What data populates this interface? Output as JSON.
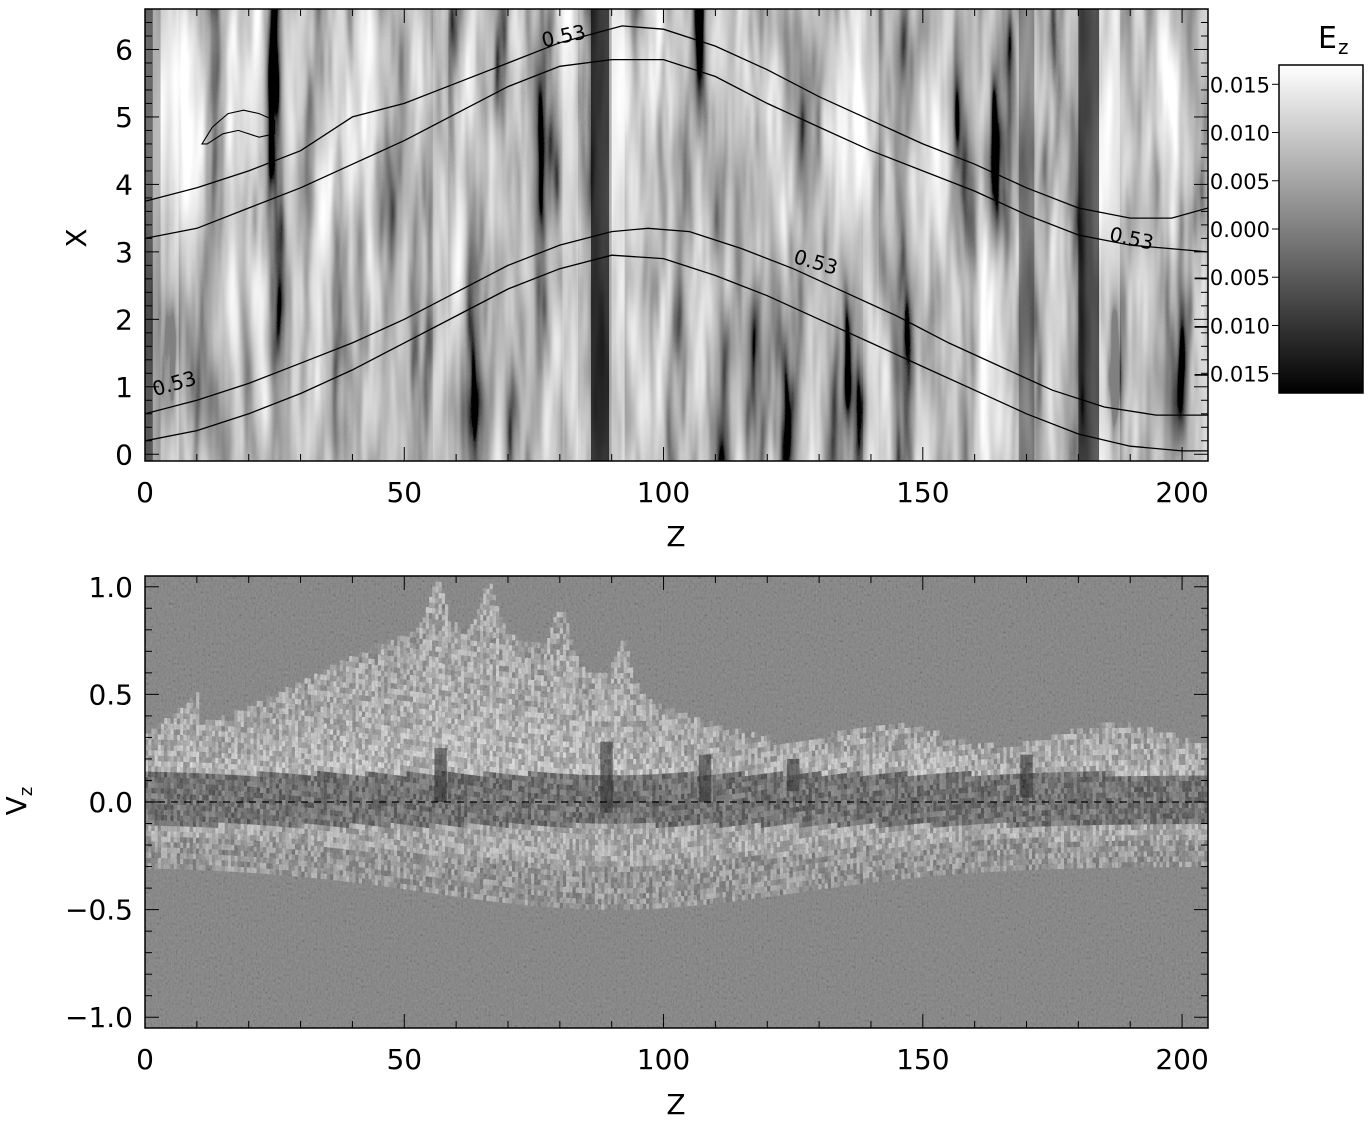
{
  "chart_data": [
    {
      "type": "heatmap",
      "xlabel": "Z",
      "ylabel": "X",
      "xlim": [
        0,
        205
      ],
      "ylim": [
        -0.1,
        6.6
      ],
      "xticks": [
        0,
        50,
        100,
        150,
        200
      ],
      "yticks": [
        0,
        1,
        2,
        3,
        4,
        5,
        6
      ],
      "colorbar": {
        "label": "E",
        "label_subscript": "z",
        "range": [
          -0.017,
          0.017
        ],
        "ticks": [
          "0.015",
          "0.010",
          "0.005",
          "0.000",
          "−0.005",
          "−0.010",
          "−0.015"
        ],
        "tick_values": [
          0.015,
          0.01,
          0.005,
          0.0,
          -0.005,
          -0.01,
          -0.015
        ],
        "colormap": "grayscale"
      },
      "contour_level": "0.53",
      "contour_labels": [
        "0.53",
        "0.53",
        "0.53",
        "0.53"
      ],
      "contours": [
        {
          "x": [
            0,
            10,
            20,
            30,
            40,
            50,
            60,
            70,
            80,
            92,
            100,
            110,
            120,
            130,
            140,
            150,
            160,
            170,
            180,
            190,
            198,
            205
          ],
          "y": [
            3.75,
            3.95,
            4.2,
            4.5,
            5.0,
            5.2,
            5.5,
            5.8,
            6.1,
            6.35,
            6.3,
            6.05,
            5.7,
            5.3,
            4.95,
            4.6,
            4.3,
            3.95,
            3.65,
            3.5,
            3.5,
            3.65
          ]
        },
        {
          "x": [
            0,
            10,
            20,
            30,
            40,
            50,
            60,
            70,
            80,
            90,
            100,
            110,
            120,
            130,
            140,
            150,
            160,
            170,
            180,
            190,
            205
          ],
          "y": [
            3.2,
            3.35,
            3.65,
            3.95,
            4.3,
            4.65,
            5.05,
            5.45,
            5.75,
            5.85,
            5.85,
            5.6,
            5.2,
            4.85,
            4.5,
            4.2,
            3.9,
            3.55,
            3.25,
            3.1,
            3.0
          ]
        },
        {
          "x": [
            0,
            10,
            20,
            30,
            40,
            50,
            60,
            70,
            80,
            90,
            97,
            105,
            115,
            125,
            135,
            145,
            155,
            165,
            175,
            185,
            195,
            205
          ],
          "y": [
            0.6,
            0.8,
            1.05,
            1.35,
            1.65,
            2.0,
            2.4,
            2.8,
            3.1,
            3.3,
            3.35,
            3.3,
            3.05,
            2.75,
            2.4,
            2.05,
            1.65,
            1.3,
            0.95,
            0.7,
            0.58,
            0.58
          ]
        },
        {
          "x": [
            0,
            10,
            20,
            30,
            40,
            50,
            60,
            70,
            80,
            90,
            100,
            110,
            120,
            130,
            140,
            150,
            160,
            170,
            180,
            190,
            200,
            205
          ],
          "y": [
            0.2,
            0.35,
            0.6,
            0.9,
            1.25,
            1.65,
            2.05,
            2.45,
            2.75,
            2.95,
            2.9,
            2.65,
            2.35,
            2.0,
            1.65,
            1.3,
            0.95,
            0.6,
            0.3,
            0.12,
            0.05,
            0.05
          ]
        }
      ],
      "small_contour": {
        "x": [
          11,
          13,
          16,
          19,
          22,
          25,
          25,
          22,
          18,
          15,
          12,
          11
        ],
        "y": [
          4.6,
          4.85,
          5.05,
          5.1,
          5.05,
          4.95,
          4.75,
          4.7,
          4.8,
          4.75,
          4.6,
          4.6
        ]
      }
    },
    {
      "type": "heatmap",
      "xlabel": "Z",
      "ylabel": "V",
      "ylabel_subscript": "z",
      "xlim": [
        0,
        205
      ],
      "ylim": [
        -1.05,
        1.05
      ],
      "xticks": [
        0,
        50,
        100,
        150,
        200
      ],
      "yticks": [
        1.0,
        0.5,
        0.0,
        -0.5,
        -1.0
      ],
      "ytick_labels": [
        "1.0",
        "0.5",
        "0.0",
        "−0.5",
        "−1.0"
      ],
      "reference_line": {
        "y": 0.0,
        "style": "dashed"
      },
      "colormap": "grayscale"
    }
  ]
}
